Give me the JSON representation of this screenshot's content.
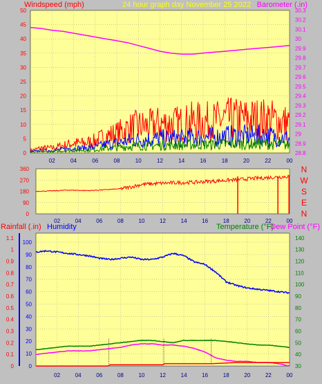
{
  "colors": {
    "background": "#c0c0c0",
    "plot_bg": "#ffff99",
    "grid": "#999999",
    "wind": "#ff0000",
    "wind_avg": "#0000ff",
    "wind_low": "#008000",
    "barometer": "#ff00ff",
    "direction": "#ff0000",
    "rain": "#ff0000",
    "humidity": "#0000ff",
    "temperature": "#008000",
    "dewpoint": "#ff00ff",
    "title": "#ffff00"
  },
  "chart_data": [
    {
      "type": "line",
      "panel": "wind_barometer",
      "title": "24 hour graph day   November 25 2022",
      "left_axis_label": "Windspeed (mph)",
      "right_axis_label": "Barometer (.in)",
      "left_ylim": [
        0,
        50
      ],
      "left_ticks": [
        "0",
        "5",
        "10",
        "15",
        "20",
        "25",
        "30",
        "35",
        "40",
        "45",
        "50"
      ],
      "right_ylim": [
        28.8,
        30.3
      ],
      "right_ticks": [
        "28.8",
        "28.9",
        "29",
        "29.1",
        "29.2",
        "29.3",
        "29.4",
        "29.5",
        "29.6",
        "29.7",
        "29.8",
        "29.9",
        "30",
        "30.1",
        "30.2",
        "30.3"
      ],
      "x_ticks": [
        "02",
        "04",
        "06",
        "08",
        "10",
        "12",
        "14",
        "16",
        "18",
        "20",
        "22",
        "00"
      ],
      "xlim": [
        0,
        24
      ],
      "grid": true,
      "barometer_series": {
        "x": [
          0,
          1,
          2,
          3,
          4,
          5,
          6,
          7,
          8,
          9,
          10,
          11,
          12,
          13,
          14,
          15,
          16,
          17,
          18,
          19,
          20,
          21,
          22,
          23,
          24
        ],
        "values": [
          30.12,
          30.11,
          30.09,
          30.08,
          30.06,
          30.04,
          30.02,
          30.0,
          29.98,
          29.96,
          29.93,
          29.9,
          29.87,
          29.85,
          29.84,
          29.84,
          29.85,
          29.86,
          29.87,
          29.88,
          29.89,
          29.9,
          29.91,
          29.92,
          29.93
        ]
      },
      "wind_gust_profile": {
        "x": [
          0,
          1,
          2,
          3,
          4,
          5,
          6,
          7,
          8,
          9,
          10,
          11,
          12,
          13,
          14,
          15,
          16,
          17,
          18,
          19,
          20,
          21,
          22,
          23,
          24
        ],
        "values": [
          1,
          2,
          2,
          3,
          4,
          4,
          5,
          7,
          8,
          10,
          11,
          11,
          12,
          12,
          12,
          13,
          13,
          13,
          14,
          14,
          14,
          14,
          14,
          13,
          12
        ]
      }
    },
    {
      "type": "line",
      "panel": "wind_direction",
      "ylim": [
        0,
        360
      ],
      "left_ticks": [
        "0",
        "90",
        "180",
        "270",
        "360"
      ],
      "compass_labels": [
        "N",
        "W",
        "S",
        "E",
        "N"
      ],
      "x_ticks": [
        "02",
        "04",
        "06",
        "08",
        "10",
        "12",
        "14",
        "16",
        "18",
        "20",
        "22",
        "00"
      ],
      "xlim": [
        0,
        24
      ],
      "grid": true,
      "series": {
        "x": [
          0,
          1,
          2,
          3,
          4,
          5,
          6,
          7,
          8,
          9,
          10,
          11,
          12,
          13,
          14,
          15,
          16,
          17,
          18,
          19,
          20,
          21,
          22,
          23,
          24
        ],
        "values": [
          180,
          182,
          185,
          190,
          188,
          186,
          190,
          195,
          200,
          215,
          235,
          240,
          245,
          248,
          250,
          252,
          258,
          262,
          268,
          272,
          280,
          285,
          290,
          295,
          300
        ]
      }
    },
    {
      "type": "line",
      "panel": "rain_humidity_temp",
      "left_axis_label_rain": "Rainfall (.in)",
      "left_axis_label_humidity": "Humidity",
      "right_axis_label_temp": "Temperature (°F)",
      "right_axis_label_dew": "Dew Point (°F)",
      "rain_ylim": [
        0,
        1.2
      ],
      "rain_ticks": [
        "0",
        "0.1",
        "0.2",
        "0.3",
        "0.4",
        "0.5",
        "0.6",
        "0.7",
        "0.8",
        "0.9",
        "1",
        "1.1"
      ],
      "humidity_ylim": [
        0,
        100
      ],
      "humidity_ticks": [
        "0",
        "10",
        "20",
        "30",
        "40",
        "50",
        "60",
        "70",
        "80",
        "90",
        "100"
      ],
      "temp_ylim": [
        30,
        150
      ],
      "temp_ticks": [
        "30",
        "40",
        "50",
        "60",
        "70",
        "80",
        "90",
        "100",
        "110",
        "120",
        "130",
        "140"
      ],
      "x_ticks": [
        "02",
        "04",
        "06",
        "08",
        "10",
        "12",
        "14",
        "16",
        "18",
        "20",
        "22",
        "00"
      ],
      "xlim": [
        0,
        24
      ],
      "grid": true,
      "humidity_series": {
        "x": [
          0,
          1,
          2,
          3,
          4,
          5,
          6,
          7,
          8,
          9,
          10,
          11,
          12,
          13,
          14,
          15,
          16,
          17,
          18,
          19,
          20,
          21,
          22,
          23,
          24
        ],
        "values": [
          92,
          93,
          92,
          91,
          90,
          89,
          87,
          86,
          87,
          88,
          86,
          86,
          88,
          91,
          89,
          84,
          82,
          76,
          68,
          65,
          63,
          62,
          61,
          60,
          59
        ]
      },
      "temperature_series": {
        "x": [
          0,
          1,
          2,
          3,
          4,
          5,
          6,
          7,
          8,
          9,
          10,
          11,
          12,
          13,
          14,
          15,
          16,
          17,
          18,
          19,
          20,
          21,
          22,
          23,
          24
        ],
        "values": [
          44,
          45,
          46,
          47,
          47,
          47,
          48,
          49,
          50,
          51,
          52,
          52,
          51,
          50,
          52,
          52,
          52,
          52,
          51,
          50,
          49,
          48,
          48,
          47,
          46
        ]
      },
      "dewpoint_series": {
        "x": [
          0,
          1,
          2,
          3,
          4,
          5,
          6,
          7,
          8,
          9,
          10,
          11,
          12,
          13,
          14,
          15,
          16,
          17,
          18,
          19,
          20,
          21,
          22,
          23,
          24
        ],
        "values": [
          40,
          41,
          42,
          43,
          43,
          43,
          44,
          45,
          46,
          48,
          49,
          49,
          48,
          48,
          47,
          45,
          42,
          37,
          35,
          34,
          34,
          33,
          33,
          32,
          30
        ]
      },
      "rain_series": {
        "x": [
          0,
          6.8,
          7,
          12,
          12.2,
          16.5,
          16.7,
          18.9,
          19,
          24
        ],
        "values": [
          0,
          0,
          0.01,
          0.01,
          0.02,
          0.02,
          0.02,
          0.03,
          0.03,
          0.03
        ]
      }
    }
  ]
}
